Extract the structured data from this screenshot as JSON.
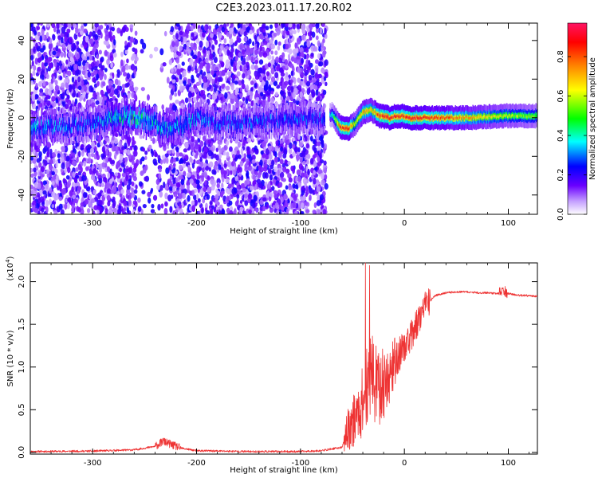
{
  "title": "C2E3.2023.011.17.20.R02",
  "chart_data": [
    {
      "type": "heatmap",
      "xlabel": "Height of straight line (km)",
      "ylabel": "Frequency (Hz)",
      "xlim": [
        -360,
        128
      ],
      "ylim": [
        -50,
        49
      ],
      "xticks": [
        -300,
        -200,
        -100,
        0,
        100
      ],
      "yticks": [
        -40,
        -20,
        0,
        20,
        40
      ],
      "colorbar": {
        "label": "Normalized spectral amplitude",
        "range": [
          0,
          0.97
        ],
        "ticks": [
          0.0,
          0.2,
          0.4,
          0.6,
          0.8
        ],
        "colormap": [
          "#ffffff",
          "#6a00ff",
          "#0000ff",
          "#00ffff",
          "#00ff00",
          "#ffff00",
          "#ff8000",
          "#ff0000",
          "#ff1493"
        ]
      },
      "features": {
        "noise_region_x": [
          -360,
          -75
        ],
        "clear_gap_x": [
          -258,
          -225
        ],
        "signal_track": [
          {
            "x": -350,
            "f": -5,
            "amp": 0.35
          },
          {
            "x": -300,
            "f": -3,
            "amp": 0.3
          },
          {
            "x": -280,
            "f": 0,
            "amp": 0.42
          },
          {
            "x": -260,
            "f": 0,
            "amp": 0.45
          },
          {
            "x": -240,
            "f": -3,
            "amp": 0.4
          },
          {
            "x": -225,
            "f": -7,
            "amp": 0.38
          },
          {
            "x": -200,
            "f": 0,
            "amp": 0.35
          },
          {
            "x": -180,
            "f": -3,
            "amp": 0.3
          },
          {
            "x": -75,
            "f": 0,
            "amp": 0.3
          },
          {
            "x": -70,
            "f": 2,
            "amp": 0.4
          },
          {
            "x": -62,
            "f": -5,
            "amp": 0.85
          },
          {
            "x": -55,
            "f": -6,
            "amp": 0.9
          },
          {
            "x": -48,
            "f": -3,
            "amp": 0.6
          },
          {
            "x": -40,
            "f": 3,
            "amp": 0.75
          },
          {
            "x": -32,
            "f": 4,
            "amp": 0.7
          },
          {
            "x": -25,
            "f": 1,
            "amp": 0.85
          },
          {
            "x": -15,
            "f": 0,
            "amp": 0.9
          },
          {
            "x": -5,
            "f": 1,
            "amp": 0.85
          },
          {
            "x": 5,
            "f": 0,
            "amp": 0.9
          },
          {
            "x": 30,
            "f": 0,
            "amp": 0.85
          },
          {
            "x": 60,
            "f": 0,
            "amp": 0.75
          },
          {
            "x": 100,
            "f": 1,
            "amp": 0.6
          },
          {
            "x": 128,
            "f": 1,
            "amp": 0.55
          }
        ]
      }
    },
    {
      "type": "line",
      "xlabel": "Height of straight line (km)",
      "ylabel": "SNR (10 * v/v)",
      "yscale_label": "(x10",
      "yscale_exponent": "4",
      "xlim": [
        -360,
        128
      ],
      "ylim": [
        -0.02,
        2.22
      ],
      "xticks": [
        -300,
        -200,
        -100,
        0,
        100
      ],
      "yticks": [
        0.0,
        0.5,
        1.0,
        1.5,
        2.0
      ],
      "line_color": "#ee3333",
      "series": [
        {
          "x": [
            -360,
            -300,
            -260,
            -240,
            -232,
            -228,
            -222,
            -215,
            -200,
            -150,
            -100,
            -80,
            -60,
            -55,
            -50,
            -45,
            -40,
            -35,
            -30,
            -25,
            -20,
            -15,
            -10,
            -5,
            0,
            5,
            10,
            15,
            20,
            25,
            30,
            40,
            50,
            60,
            70,
            80,
            90,
            95,
            100,
            110,
            128
          ],
          "y": [
            0.01,
            0.015,
            0.03,
            0.07,
            0.13,
            0.11,
            0.08,
            0.05,
            0.02,
            0.01,
            0.01,
            0.02,
            0.06,
            0.25,
            0.35,
            0.45,
            0.6,
            0.85,
            0.85,
            0.75,
            0.8,
            0.9,
            1.05,
            1.15,
            1.25,
            1.32,
            1.45,
            1.6,
            1.7,
            1.78,
            1.84,
            1.87,
            1.88,
            1.88,
            1.87,
            1.87,
            1.86,
            1.9,
            1.86,
            1.84,
            1.83
          ]
        }
      ]
    }
  ]
}
